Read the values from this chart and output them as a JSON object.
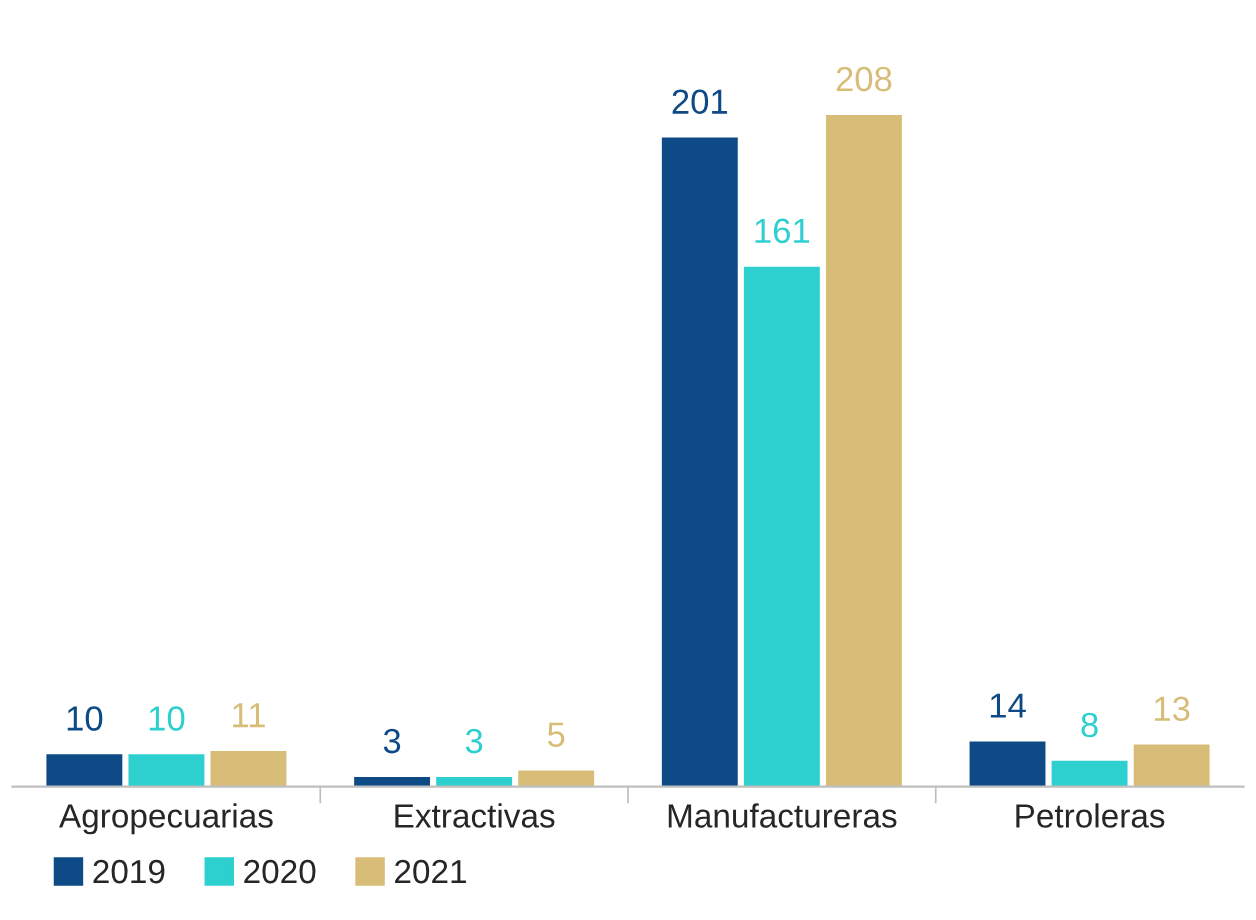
{
  "chart_data": {
    "type": "bar",
    "categories": [
      "Agropecuarias",
      "Extractivas",
      "Manufactureras",
      "Petroleras"
    ],
    "series": [
      {
        "name": "2019",
        "color": "#0e4a86",
        "values": [
          10,
          3,
          201,
          14
        ]
      },
      {
        "name": "2020",
        "color": "#2ecfcf",
        "values": [
          10,
          3,
          161,
          8
        ]
      },
      {
        "name": "2021",
        "color": "#d8bd78",
        "values": [
          11,
          5,
          208,
          13
        ]
      }
    ],
    "data_labels": true,
    "legend": "bottom left",
    "grid": false
  }
}
